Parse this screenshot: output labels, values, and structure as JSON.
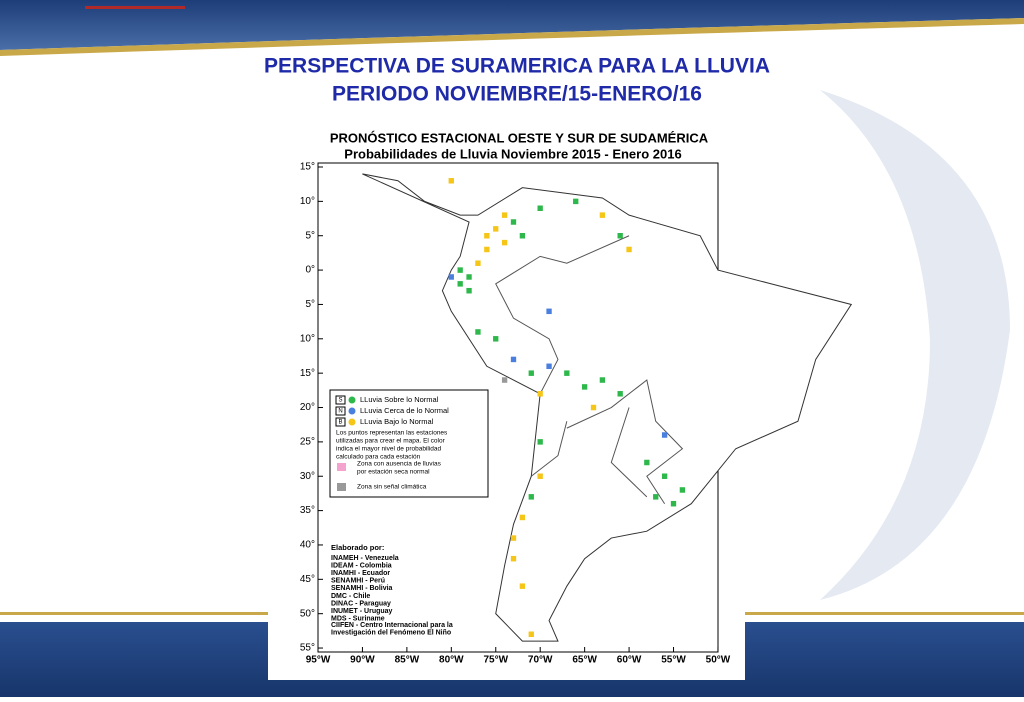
{
  "slide": {
    "title": [
      "PERSPECTIVA DE SURAMERICA PARA LA LLUVIA",
      "PERIODO NOVIEMBRE/15-ENERO/16"
    ]
  },
  "map": {
    "title": "PRONÓSTICO ESTACIONAL OESTE Y SUR DE SUDAMÉRICA",
    "subtitle": "Probabilidades de Lluvia Noviembre 2015 - Enero 2016",
    "lat_labels": [
      "15°",
      "10°",
      "5°",
      "0°",
      "5°",
      "10°",
      "15°",
      "20°",
      "25°",
      "30°",
      "35°",
      "40°",
      "45°",
      "50°",
      "55°"
    ],
    "lon_labels": [
      "95°W",
      "90°W",
      "85°W",
      "80°W",
      "75°W",
      "70°W",
      "65°W",
      "60°W",
      "55°W",
      "50°W"
    ],
    "legend": [
      {
        "key": "S",
        "label": "LLuvia Sobre lo Normal",
        "color": "#2eb84b"
      },
      {
        "key": "N",
        "label": "LLuvia Cerca de lo Normal",
        "color": "#4a7fe0"
      },
      {
        "key": "B",
        "label": "LLuvia Bajo lo Normal",
        "color": "#f5c518"
      }
    ],
    "note": [
      "Los puntos representan las estaciones",
      "utilizadas para crear el mapa. El color",
      "indica el mayor nivel de probabilidad",
      "calculado para cada estación"
    ],
    "zones": [
      {
        "label": [
          "Zona con ausencia de lluvias",
          "por estación seca normal"
        ],
        "color": "#f4a3cf"
      },
      {
        "label": [
          "Zona sin señal climática"
        ],
        "color": "#999999"
      }
    ],
    "credits_title": "Elaborado por:",
    "credits": [
      "INAMEH - Venezuela",
      "IDEAM - Colombia",
      "INAMHI - Ecuador",
      "SENAMHI - Perú",
      "SENAMHI - Bolivia",
      "DMC - Chile",
      "DINAC - Paraguay",
      "INUMET - Uruguay",
      "MDS - Suriname"
    ],
    "footer": [
      "CIIFEN - Centro Internacional para la",
      "Investigación del Fenómeno El Niño"
    ]
  }
}
